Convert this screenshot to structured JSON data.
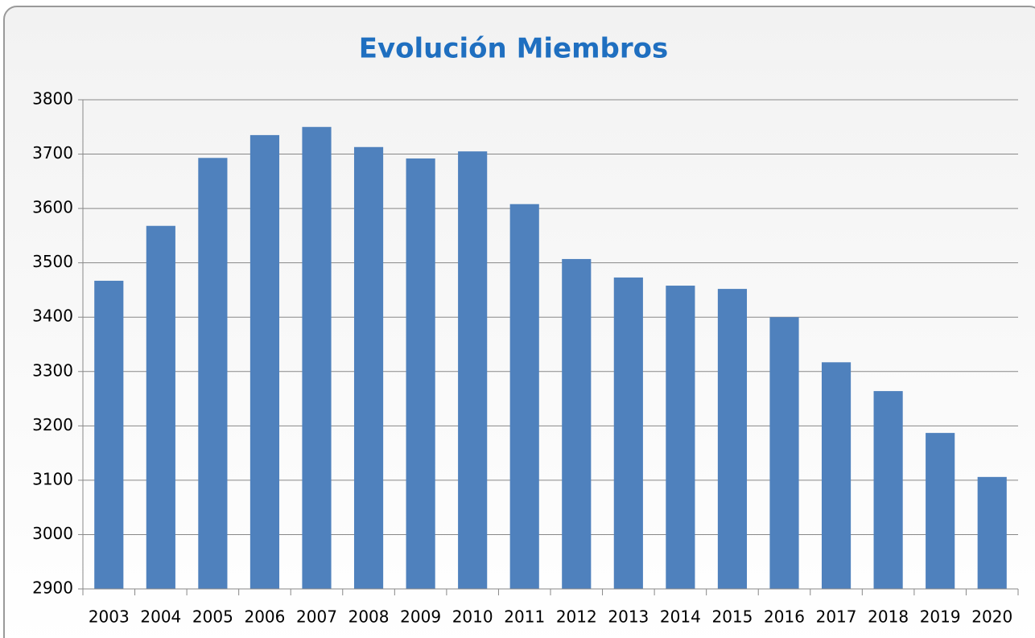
{
  "chart_data": {
    "type": "bar",
    "title": "Evolución Miembros",
    "categories": [
      "2003",
      "2004",
      "2005",
      "2006",
      "2007",
      "2008",
      "2009",
      "2010",
      "2011",
      "2012",
      "2013",
      "2014",
      "2015",
      "2016",
      "2017",
      "2018",
      "2019",
      "2020"
    ],
    "values": [
      3467,
      3568,
      3693,
      3735,
      3750,
      3713,
      3692,
      3705,
      3608,
      3507,
      3473,
      3458,
      3452,
      3400,
      3317,
      3264,
      3187,
      3106
    ],
    "color": "#4f81bd",
    "ylim": [
      2900,
      3800
    ],
    "yticks": [
      2900,
      3000,
      3100,
      3200,
      3300,
      3400,
      3500,
      3600,
      3700,
      3800
    ],
    "grid": true
  }
}
